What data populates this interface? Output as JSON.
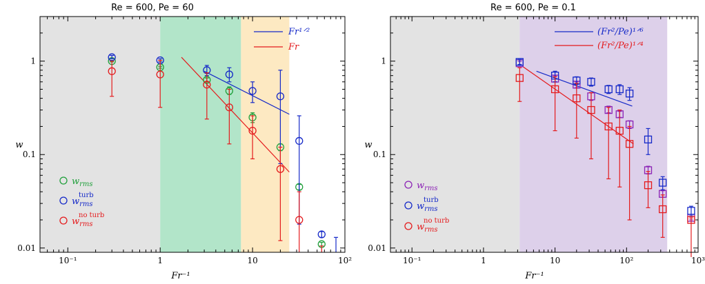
{
  "chart_data": [
    {
      "type": "scatter",
      "title": "Re = 600, Pe = 60",
      "xlabel": "Fr⁻¹",
      "ylabel": "w",
      "xscale": "log",
      "yscale": "log",
      "xlim": [
        0.05,
        100
      ],
      "ylim": [
        0.009,
        3.0
      ],
      "x_tick_labels": [
        "10⁻¹",
        "1",
        "10",
        "10²"
      ],
      "y_tick_labels": [
        "0.01",
        "0.1",
        "1"
      ],
      "regions": [
        {
          "from": 0.05,
          "to": 1,
          "color": "#e3e3e3"
        },
        {
          "from": 1,
          "to": 7.5,
          "color": "#b2e5c9"
        },
        {
          "from": 7.5,
          "to": 25,
          "color": "#fde9c2"
        }
      ],
      "series": [
        {
          "name": "w_rms",
          "color": "#1f9f3a",
          "marker": "circle",
          "points": [
            {
              "x": 0.3,
              "y": 1.0,
              "lo": 0.98,
              "hi": 1.02
            },
            {
              "x": 1.0,
              "y": 0.86,
              "lo": 0.84,
              "hi": 0.88
            },
            {
              "x": 3.2,
              "y": 0.63,
              "lo": 0.6,
              "hi": 0.66
            },
            {
              "x": 5.6,
              "y": 0.48,
              "lo": 0.44,
              "hi": 0.53
            },
            {
              "x": 10,
              "y": 0.25,
              "lo": 0.22,
              "hi": 0.28
            },
            {
              "x": 20,
              "y": 0.12,
              "lo": 0.11,
              "hi": 0.13
            },
            {
              "x": 32,
              "y": 0.045,
              "lo": 0.042,
              "hi": 0.048
            },
            {
              "x": 56,
              "y": 0.011,
              "lo": 0.0105,
              "hi": 0.0115
            }
          ]
        },
        {
          "name": "w_rms^turb",
          "color": "#1428c8",
          "marker": "circle",
          "points": [
            {
              "x": 0.3,
              "y": 1.1,
              "lo": 1.06,
              "hi": 1.15
            },
            {
              "x": 1.0,
              "y": 1.02,
              "lo": 0.98,
              "hi": 1.06
            },
            {
              "x": 3.2,
              "y": 0.8,
              "lo": 0.7,
              "hi": 0.9
            },
            {
              "x": 5.6,
              "y": 0.72,
              "lo": 0.6,
              "hi": 0.85
            },
            {
              "x": 10,
              "y": 0.48,
              "lo": 0.36,
              "hi": 0.6
            },
            {
              "x": 20,
              "y": 0.42,
              "lo": 0.08,
              "hi": 0.8
            },
            {
              "x": 32,
              "y": 0.14,
              "lo": 0.018,
              "hi": 0.26
            },
            {
              "x": 56,
              "y": 0.014,
              "lo": 0.013,
              "hi": 0.015
            },
            {
              "x": 80,
              "y": null,
              "lo": 0.009,
              "hi": 0.013
            }
          ]
        },
        {
          "name": "w_rms^no turb",
          "color": "#e41a1c",
          "marker": "circle",
          "points": [
            {
              "x": 0.3,
              "y": 0.78,
              "lo": 0.42,
              "hi": 1.0
            },
            {
              "x": 1.0,
              "y": 0.72,
              "lo": 0.32,
              "hi": 1.02
            },
            {
              "x": 3.2,
              "y": 0.56,
              "lo": 0.24,
              "hi": 0.75
            },
            {
              "x": 5.6,
              "y": 0.32,
              "lo": 0.13,
              "hi": 0.5
            },
            {
              "x": 10,
              "y": 0.18,
              "lo": 0.09,
              "hi": 0.26
            },
            {
              "x": 20,
              "y": 0.07,
              "lo": 0.012,
              "hi": 0.12
            },
            {
              "x": 32,
              "y": 0.02,
              "lo": 0.009,
              "hi": 0.04
            },
            {
              "x": 56,
              "y": null,
              "lo": 0.009,
              "hi": 0.0105
            }
          ]
        }
      ],
      "fit_lines": [
        {
          "name": "Fr^{1/2}",
          "color": "#1428c8",
          "x": [
            3.0,
            25
          ],
          "y": [
            0.78,
            0.27
          ]
        },
        {
          "name": "Fr",
          "color": "#e41a1c",
          "x": [
            1.7,
            25
          ],
          "y": [
            1.1,
            0.065
          ]
        }
      ],
      "legend_fit": [
        {
          "label": "Fr¹ᐟ²",
          "color": "#1428c8"
        },
        {
          "label": "Fr",
          "color": "#e41a1c"
        }
      ],
      "legend_markers": [
        {
          "label": "w",
          "sub": "rms",
          "sup": "",
          "color": "#1f9f3a"
        },
        {
          "label": "w",
          "sub": "rms",
          "sup": "turb",
          "color": "#1428c8"
        },
        {
          "label": "w",
          "sub": "rms",
          "sup": "no turb",
          "color": "#e41a1c"
        }
      ]
    },
    {
      "type": "scatter",
      "title": "Re = 600, Pe = 0.1",
      "xlabel": "Fr⁻¹",
      "ylabel": "w",
      "xscale": "log",
      "yscale": "log",
      "xlim": [
        0.05,
        1000
      ],
      "ylim": [
        0.009,
        3.0
      ],
      "x_tick_labels": [
        "10⁻¹",
        "1",
        "10",
        "10²",
        "10³"
      ],
      "y_tick_labels": [
        "0.01",
        "0.1",
        "1"
      ],
      "regions": [
        {
          "from": 0.05,
          "to": 3.2,
          "color": "#e3e3e3"
        },
        {
          "from": 3.2,
          "to": 370,
          "color": "#ddd0ea"
        }
      ],
      "series": [
        {
          "name": "w_rms",
          "color": "#8b22b5",
          "marker": "square",
          "points": [
            {
              "x": 3.2,
              "y": 0.95,
              "lo": 0.9,
              "hi": 1.0
            },
            {
              "x": 10,
              "y": 0.65,
              "lo": 0.6,
              "hi": 0.7
            },
            {
              "x": 20,
              "y": 0.56,
              "lo": 0.52,
              "hi": 0.6
            },
            {
              "x": 32,
              "y": 0.42,
              "lo": 0.38,
              "hi": 0.46
            },
            {
              "x": 56,
              "y": 0.3,
              "lo": 0.28,
              "hi": 0.33
            },
            {
              "x": 80,
              "y": 0.27,
              "lo": 0.25,
              "hi": 0.29
            },
            {
              "x": 110,
              "y": 0.21,
              "lo": 0.19,
              "hi": 0.23
            },
            {
              "x": 200,
              "y": 0.068,
              "lo": 0.062,
              "hi": 0.075
            },
            {
              "x": 320,
              "y": 0.038,
              "lo": 0.035,
              "hi": 0.041
            },
            {
              "x": 800,
              "y": 0.021,
              "lo": 0.02,
              "hi": 0.022
            }
          ]
        },
        {
          "name": "w_rms^turb",
          "color": "#1428c8",
          "marker": "square",
          "points": [
            {
              "x": 3.2,
              "y": 0.98,
              "lo": 0.92,
              "hi": 1.04
            },
            {
              "x": 10,
              "y": 0.7,
              "lo": 0.6,
              "hi": 0.78
            },
            {
              "x": 20,
              "y": 0.62,
              "lo": 0.56,
              "hi": 0.68
            },
            {
              "x": 32,
              "y": 0.6,
              "lo": 0.54,
              "hi": 0.66
            },
            {
              "x": 56,
              "y": 0.5,
              "lo": 0.45,
              "hi": 0.55
            },
            {
              "x": 80,
              "y": 0.5,
              "lo": 0.44,
              "hi": 0.56
            },
            {
              "x": 110,
              "y": 0.45,
              "lo": 0.38,
              "hi": 0.52
            },
            {
              "x": 200,
              "y": 0.145,
              "lo": 0.1,
              "hi": 0.19
            },
            {
              "x": 320,
              "y": 0.05,
              "lo": 0.042,
              "hi": 0.058
            },
            {
              "x": 800,
              "y": 0.025,
              "lo": 0.022,
              "hi": 0.028
            }
          ]
        },
        {
          "name": "w_rms^no turb",
          "color": "#e41a1c",
          "marker": "square",
          "points": [
            {
              "x": 3.2,
              "y": 0.66,
              "lo": 0.37,
              "hi": 0.85
            },
            {
              "x": 10,
              "y": 0.5,
              "lo": 0.18,
              "hi": 0.68
            },
            {
              "x": 20,
              "y": 0.4,
              "lo": 0.15,
              "hi": 0.58
            },
            {
              "x": 32,
              "y": 0.3,
              "lo": 0.09,
              "hi": 0.46
            },
            {
              "x": 56,
              "y": 0.2,
              "lo": 0.055,
              "hi": 0.32
            },
            {
              "x": 80,
              "y": 0.18,
              "lo": 0.045,
              "hi": 0.3
            },
            {
              "x": 110,
              "y": 0.13,
              "lo": 0.02,
              "hi": 0.2
            },
            {
              "x": 200,
              "y": 0.047,
              "lo": 0.027,
              "hi": 0.066
            },
            {
              "x": 320,
              "y": 0.026,
              "lo": 0.013,
              "hi": 0.037
            },
            {
              "x": 800,
              "y": 0.02,
              "lo": 0.008,
              "hi": 0.021
            }
          ]
        }
      ],
      "fit_lines": [
        {
          "name": "(Fr²/Pe)^{1/6}",
          "color": "#1428c8",
          "x": [
            5.5,
            120
          ],
          "y": [
            0.78,
            0.33
          ]
        },
        {
          "name": "(Fr²/Pe)^{1/4}",
          "color": "#e41a1c",
          "x": [
            3.5,
            125
          ],
          "y": [
            0.88,
            0.13
          ]
        }
      ],
      "legend_fit": [
        {
          "label": "(Fr²/Pe)¹ᐟ⁶",
          "color": "#1428c8"
        },
        {
          "label": "(Fr²/Pe)¹ᐟ⁴",
          "color": "#e41a1c"
        }
      ],
      "legend_markers": [
        {
          "label": "w",
          "sub": "rms",
          "sup": "",
          "color": "#8b22b5"
        },
        {
          "label": "w",
          "sub": "rms",
          "sup": "turb",
          "color": "#1428c8"
        },
        {
          "label": "w",
          "sub": "rms",
          "sup": "no turb",
          "color": "#e41a1c"
        }
      ]
    }
  ]
}
